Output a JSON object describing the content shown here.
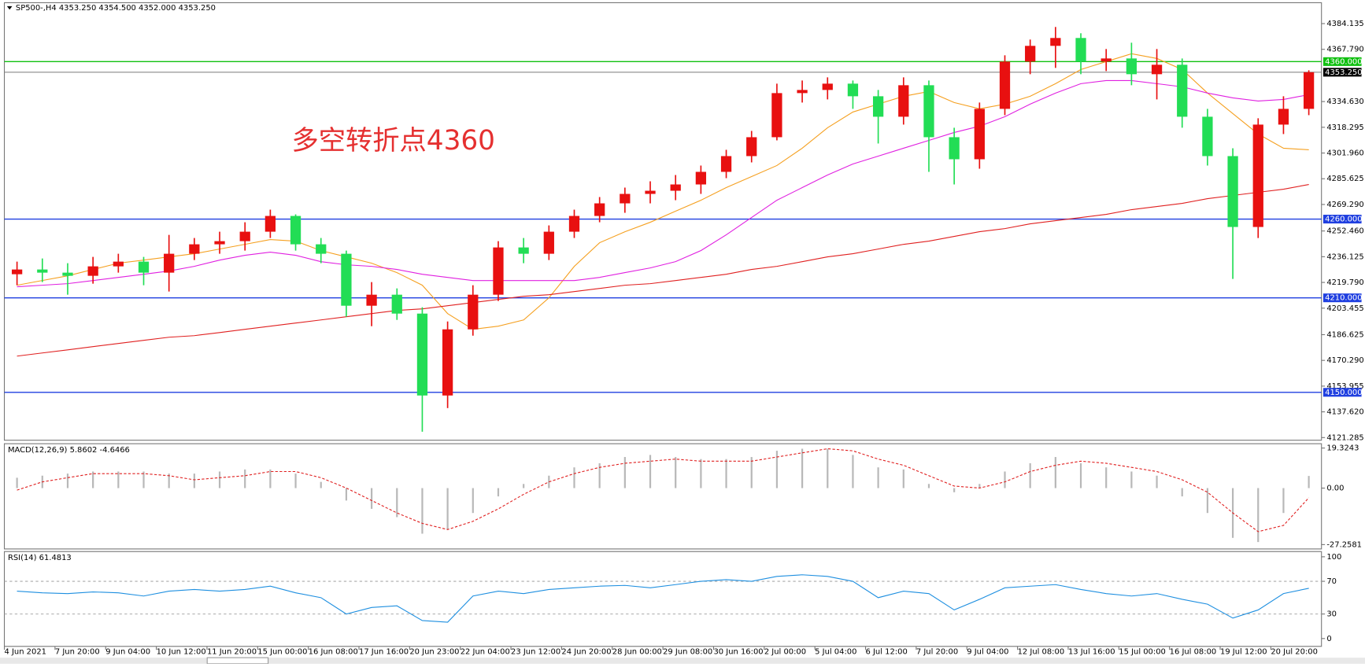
{
  "chart_data": [
    {
      "type": "candlestick",
      "title": "SP500-,H4 4353.250 4354.500 4352.000 4353.250",
      "annotation": "多空转折点4360",
      "categories": [
        "4 Jun 2021",
        null,
        "7 Jun 20:00",
        null,
        "9 Jun 04:00",
        null,
        "10 Jun 12:00",
        null,
        "11 Jun 20:00",
        null,
        "15 Jun 00:00",
        null,
        "16 Jun 08:00",
        null,
        "17 Jun 16:00",
        null,
        "20 Jun 23:00",
        null,
        "22 Jun 04:00",
        null,
        "23 Jun 12:00",
        null,
        "24 Jun 20:00",
        null,
        "28 Jun 00:00",
        null,
        "29 Jun 08:00",
        null,
        "30 Jun 16:00",
        null,
        "2 Jul 00:00",
        null,
        "5 Jul 04:00",
        null,
        "6 Jul 12:00",
        null,
        "7 Jul 20:00",
        null,
        "9 Jul 04:00",
        null,
        "12 Jul 08:00",
        null,
        "13 Jul 16:00",
        null,
        "15 Jul 00:00",
        null,
        "16 Jul 08:00",
        null,
        "19 Jul 12:00",
        null,
        "20 Jul 20:00",
        null
      ],
      "open": [
        4225,
        4228,
        4226,
        4224,
        4230,
        4233,
        4226,
        4238,
        4244,
        4246,
        4252,
        4262,
        4244,
        4238,
        4205,
        4212,
        4200,
        4148,
        4190,
        4212,
        4242,
        4238,
        4252,
        4262,
        4270,
        4276,
        4278,
        4282,
        4290,
        4300,
        4312,
        4340,
        4342,
        4346,
        4338,
        4325,
        4345,
        4312,
        4298,
        4330,
        4360,
        4370,
        4375,
        4360,
        4362,
        4352,
        4358,
        4325,
        4300,
        4255,
        4320,
        4330
      ],
      "high": [
        4233,
        4235,
        4232,
        4236,
        4238,
        4236,
        4250,
        4248,
        4252,
        4258,
        4266,
        4263,
        4248,
        4240,
        4220,
        4216,
        4204,
        4195,
        4218,
        4246,
        4248,
        4256,
        4266,
        4274,
        4280,
        4284,
        4288,
        4294,
        4304,
        4316,
        4346,
        4348,
        4350,
        4348,
        4342,
        4350,
        4348,
        4318,
        4334,
        4364,
        4374,
        4382,
        4378,
        4368,
        4372,
        4368,
        4362,
        4330,
        4305,
        4324,
        4338,
        4354.5
      ],
      "low": [
        4218,
        4220,
        4212,
        4219,
        4226,
        4218,
        4214,
        4234,
        4238,
        4240,
        4248,
        4240,
        4232,
        4198,
        4192,
        4196,
        4125,
        4140,
        4186,
        4208,
        4232,
        4234,
        4248,
        4258,
        4264,
        4270,
        4272,
        4276,
        4286,
        4296,
        4310,
        4334,
        4336,
        4330,
        4308,
        4320,
        4290,
        4282,
        4292,
        4326,
        4352,
        4356,
        4352,
        4354,
        4345,
        4336,
        4318,
        4294,
        4222,
        4248,
        4314,
        4326
      ],
      "close": [
        4228,
        4226,
        4224,
        4230,
        4233,
        4226,
        4238,
        4244,
        4246,
        4252,
        4262,
        4244,
        4238,
        4205,
        4212,
        4200,
        4148,
        4190,
        4212,
        4242,
        4238,
        4252,
        4262,
        4270,
        4276,
        4278,
        4282,
        4290,
        4300,
        4312,
        4340,
        4342,
        4346,
        4338,
        4325,
        4345,
        4312,
        4298,
        4330,
        4360,
        4370,
        4375,
        4360,
        4362,
        4352,
        4358,
        4325,
        4300,
        4255,
        4320,
        4330,
        4353.25
      ],
      "up_color": "#e81010",
      "down_color": "#22dd55",
      "ma": [
        {
          "color": "#f5a020",
          "values": [
            4218,
            4221,
            4224,
            4228,
            4232,
            4234,
            4236,
            4238,
            4241,
            4244,
            4247,
            4246,
            4240,
            4236,
            4232,
            4226,
            4218,
            4200,
            4190,
            4192,
            4196,
            4210,
            4230,
            4245,
            4252,
            4258,
            4265,
            4272,
            4280,
            4287,
            4294,
            4305,
            4318,
            4328,
            4333,
            4338,
            4341,
            4334,
            4330,
            4333,
            4338,
            4346,
            4355,
            4360,
            4365,
            4362,
            4355,
            4340,
            4327,
            4314,
            4305,
            4304
          ]
        },
        {
          "color": "#e020e0",
          "values": [
            4217,
            4218,
            4219,
            4221,
            4223,
            4225,
            4227,
            4230,
            4234,
            4237,
            4239,
            4237,
            4233,
            4231,
            4230,
            4228,
            4225,
            4223,
            4221,
            4221,
            4221,
            4221,
            4221,
            4223,
            4226,
            4229,
            4233,
            4240,
            4250,
            4261,
            4272,
            4280,
            4288,
            4295,
            4300,
            4305,
            4310,
            4315,
            4319,
            4325,
            4333,
            4340,
            4346,
            4348,
            4348,
            4346,
            4344,
            4340,
            4337,
            4335,
            4336,
            4339
          ]
        },
        {
          "color": "#e02020",
          "values": [
            4173,
            4175,
            4177,
            4179,
            4181,
            4183,
            4185,
            4186,
            4188,
            4190,
            4192,
            4194,
            4196,
            4198,
            4200,
            4202,
            4203,
            4205,
            4207,
            4209,
            4211,
            4212,
            4214,
            4216,
            4218,
            4219,
            4221,
            4223,
            4225,
            4228,
            4230,
            4233,
            4236,
            4238,
            4241,
            4244,
            4246,
            4249,
            4252,
            4254,
            4257,
            4259,
            4261,
            4263,
            4266,
            4268,
            4270,
            4273,
            4275,
            4277,
            4279,
            4282
          ]
        }
      ],
      "levels": [
        {
          "value": 4360,
          "label": "4360.000",
          "color": "#10c010"
        },
        {
          "value": 4260,
          "label": "4260.000",
          "color": "#1f3fe0"
        },
        {
          "value": 4210,
          "label": "4210.000",
          "color": "#1f3fe0"
        },
        {
          "value": 4150,
          "label": "4150.000",
          "color": "#1f3fe0"
        }
      ],
      "current_price": {
        "value": 4353.25,
        "label": "4353.250",
        "color": "#888888"
      },
      "ylim": [
        4119.6,
        4396.3
      ],
      "yticks": [
        4384.135,
        {
          "value": 4367.79,
          "label": "4367.790"
        },
        {
          "value": 4334.63,
          "label": "4334.630"
        },
        4318.295,
        {
          "value": 4301.96,
          "label": "4301.960"
        },
        4285.625,
        {
          "value": 4269.29,
          "label": "4269.290"
        },
        {
          "value": 4252.46,
          "label": "4252.460"
        },
        4236.125,
        {
          "value": 4219.79,
          "label": "4219.790"
        },
        4203.455,
        4186.625,
        {
          "value": 4170.29,
          "label": "4170.290"
        },
        4153.955,
        {
          "value": 4137.62,
          "label": "4137.620"
        },
        4121.285
      ]
    },
    {
      "type": "macd",
      "title": "MACD(12,26,9) 5.8602 -4.6466",
      "histogram": {
        "color": "#b8b8b8",
        "values": [
          5,
          6,
          7,
          8,
          8,
          8,
          7,
          7,
          8,
          9,
          9,
          7,
          3,
          -6,
          -10,
          -14,
          -22,
          -20,
          -12,
          -4,
          2,
          6,
          10,
          12,
          15,
          16,
          15,
          14,
          14,
          15,
          18,
          19,
          19,
          16,
          10,
          9,
          2,
          -2,
          2,
          8,
          12,
          15,
          12,
          10,
          8,
          6,
          -4,
          -12,
          -24,
          -26,
          -12,
          5.8602
        ]
      },
      "signal": {
        "color": "#e02020",
        "values": [
          -1,
          3,
          5,
          7,
          7,
          7,
          6,
          4,
          5,
          6,
          8,
          8,
          5,
          0,
          -6,
          -12,
          -17,
          -20,
          -16,
          -10,
          -3,
          3,
          7,
          10,
          12,
          13,
          14,
          13,
          13,
          13,
          15,
          17,
          19,
          18,
          14,
          11,
          6,
          1,
          0,
          3,
          8,
          11,
          13,
          12,
          10,
          8,
          4,
          -2,
          -12,
          -21,
          -18,
          -4.6466
        ]
      },
      "ylim": [
        -27.2581,
        19.3243
      ],
      "yticks": [
        19.3243,
        {
          "value": 0,
          "label": "0.00"
        },
        -27.2581
      ]
    },
    {
      "type": "rsi",
      "title": "RSI(14) 61.4813",
      "color": "#1e8fe0",
      "values": [
        58,
        56,
        55,
        57,
        56,
        52,
        58,
        60,
        58,
        60,
        64,
        56,
        50,
        30,
        38,
        40,
        22,
        20,
        52,
        58,
        55,
        60,
        62,
        64,
        65,
        62,
        66,
        70,
        72,
        70,
        76,
        78,
        76,
        70,
        50,
        58,
        55,
        35,
        48,
        62,
        64,
        66,
        60,
        55,
        52,
        55,
        48,
        42,
        25,
        35,
        55,
        61.4813
      ],
      "levels": [
        70,
        30
      ],
      "ylim": [
        0,
        100
      ],
      "yticks": [
        100,
        70,
        30,
        0
      ]
    }
  ]
}
